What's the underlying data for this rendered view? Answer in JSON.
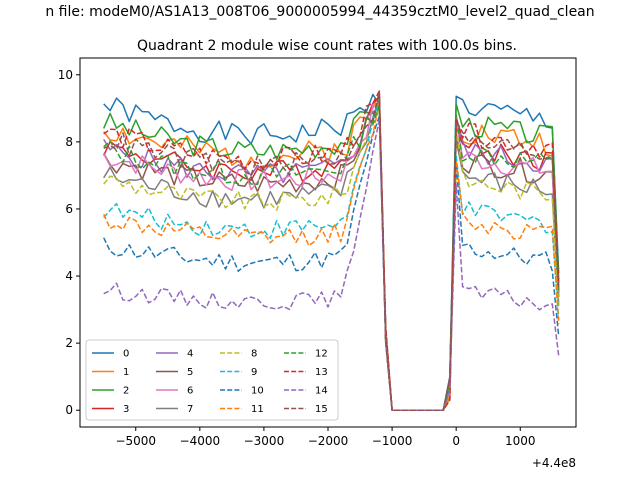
{
  "chart_data": {
    "type": "line",
    "suptitle": "n file: modeM0/AS1A13_008T06_9000005994_44359cztM0_level2_quad_clean",
    "title": "Quadrant 2 module wise count rates with 100.0s bins.",
    "xlabel": "",
    "ylabel": "",
    "x_offset_label": "+4.4e8",
    "xlim": [
      -5870,
      1870
    ],
    "ylim": [
      -0.5,
      10.5
    ],
    "x_ticks": [
      -5000,
      -4000,
      -3000,
      -2000,
      -1000,
      0,
      1000
    ],
    "x_tick_labels": [
      "−5000",
      "−4000",
      "−3000",
      "−2000",
      "−1000",
      "0",
      "1000"
    ],
    "y_ticks": [
      0,
      2,
      4,
      6,
      8,
      10
    ],
    "y_tick_labels": [
      "0",
      "2",
      "4",
      "6",
      "8",
      "10"
    ],
    "grid": false,
    "legend_position": "lower-left",
    "series": [
      {
        "name": "0",
        "color": "#1f77b4",
        "dash": "solid",
        "level": 9.1,
        "noise": 0.35,
        "seed": 1
      },
      {
        "name": "1",
        "color": "#ff7f0e",
        "dash": "solid",
        "level": 8.4,
        "noise": 0.4,
        "seed": 2
      },
      {
        "name": "2",
        "color": "#2ca02c",
        "dash": "solid",
        "level": 8.6,
        "noise": 0.35,
        "seed": 3
      },
      {
        "name": "3",
        "color": "#d62728",
        "dash": "solid",
        "level": 7.9,
        "noise": 0.35,
        "seed": 4
      },
      {
        "name": "4",
        "color": "#9467bd",
        "dash": "solid",
        "level": 7.8,
        "noise": 0.35,
        "seed": 5
      },
      {
        "name": "5",
        "color": "#8c564b",
        "dash": "solid",
        "level": 7.5,
        "noise": 0.35,
        "seed": 6
      },
      {
        "name": "6",
        "color": "#e377c2",
        "dash": "solid",
        "level": 7.6,
        "noise": 0.35,
        "seed": 7
      },
      {
        "name": "7",
        "color": "#7f7f7f",
        "dash": "solid",
        "level": 7.0,
        "noise": 0.35,
        "seed": 8
      },
      {
        "name": "8",
        "color": "#bcbd22",
        "dash": "dashed",
        "level": 6.9,
        "noise": 0.3,
        "seed": 9
      },
      {
        "name": "9",
        "color": "#17becf",
        "dash": "dashed",
        "level": 6.0,
        "noise": 0.3,
        "seed": 10
      },
      {
        "name": "10",
        "color": "#1f77b4",
        "dash": "dashed",
        "level": 4.9,
        "noise": 0.3,
        "seed": 11
      },
      {
        "name": "11",
        "color": "#ff7f0e",
        "dash": "dashed",
        "level": 5.7,
        "noise": 0.3,
        "seed": 12
      },
      {
        "name": "12",
        "color": "#2ca02c",
        "dash": "dashed",
        "level": 7.8,
        "noise": 0.35,
        "seed": 13
      },
      {
        "name": "13",
        "color": "#d62728",
        "dash": "dashed",
        "level": 8.3,
        "noise": 0.35,
        "seed": 14
      },
      {
        "name": "14",
        "color": "#9467bd",
        "dash": "dashed",
        "level": 3.6,
        "noise": 0.25,
        "seed": 15
      },
      {
        "name": "15",
        "color": "#8c564b",
        "dash": "dashed",
        "level": 8.1,
        "noise": 0.35,
        "seed": 16
      }
    ],
    "x_start": -5500,
    "x_step": 100,
    "gap_start": -1100,
    "gap_end": -100,
    "x_end": 1600
  }
}
